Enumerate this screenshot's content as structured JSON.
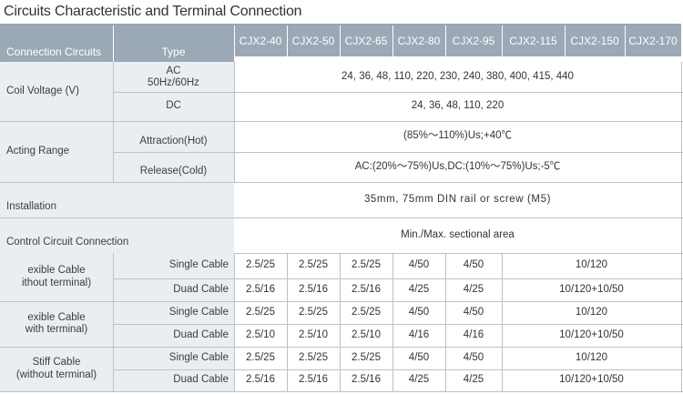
{
  "title": "Circuits Characteristic and Terminal Connection",
  "header": {
    "circuits": "Connection Circuits",
    "type": "Type",
    "models": [
      "CJX2-40",
      "CJX2-50",
      "CJX2-65",
      "CJX2-80",
      "CJX2-95",
      "CJX2-115",
      "CJX2-150",
      "CJX2-170"
    ]
  },
  "coil": {
    "label": "Coil Voltage (V)",
    "ac_type": "AC\n50Hz/60Hz",
    "ac_values": "24, 36, 48, 110, 220, 230, 240, 380, 400, 415, 440",
    "dc_type": "DC",
    "dc_values": "24, 36, 48, 110, 220"
  },
  "acting": {
    "label": "Acting Range",
    "attraction_type": "Attraction(Hot)",
    "attraction_value": "(85%～110%)Us;+40℃",
    "release_type": "Release(Cold)",
    "release_value": "AC:(20%～75%)Us,DC:(10%～75%)Us;-5℃"
  },
  "installation": {
    "label": "Installation",
    "value": "35mm, 75mm DIN rail or screw (M5)"
  },
  "control": {
    "label": "Control Circuit Connection",
    "value": "Min./Max. sectional area"
  },
  "cables": [
    {
      "label": "exible Cable\n ithout terminal)",
      "rows": [
        {
          "type": "Single Cable",
          "values": [
            "2.5/25",
            "2.5/25",
            "2.5/25",
            "4/50",
            "4/50"
          ],
          "wide": "10/120"
        },
        {
          "type": "Duad Cable",
          "values": [
            "2.5/16",
            "2.5/16",
            "2.5/16",
            "4/25",
            "4/25"
          ],
          "wide": "10/120+10/50"
        }
      ]
    },
    {
      "label": "exible Cable\nwith terminal)",
      "rows": [
        {
          "type": "Single Cable",
          "values": [
            "2.5/25",
            "2.5/25",
            "2.5/25",
            "4/50",
            "4/50"
          ],
          "wide": "10/120"
        },
        {
          "type": "Duad Cable",
          "values": [
            "2.5/10",
            "2.5/10",
            "2.5/10",
            "4/16",
            "4/16"
          ],
          "wide": "10/120+10/50"
        }
      ]
    },
    {
      "label": "Stiff Cable\n(without terminal)",
      "rows": [
        {
          "type": "Single Cable",
          "values": [
            "2.5/25",
            "2.5/25",
            "2.5/25",
            "4/50",
            "4/50"
          ],
          "wide": "10/120"
        },
        {
          "type": "Duad Cable",
          "values": [
            "2.5/16",
            "2.5/16",
            "2.5/16",
            "4/25",
            "4/25"
          ],
          "wide": "10/120+10/50"
        }
      ]
    }
  ]
}
